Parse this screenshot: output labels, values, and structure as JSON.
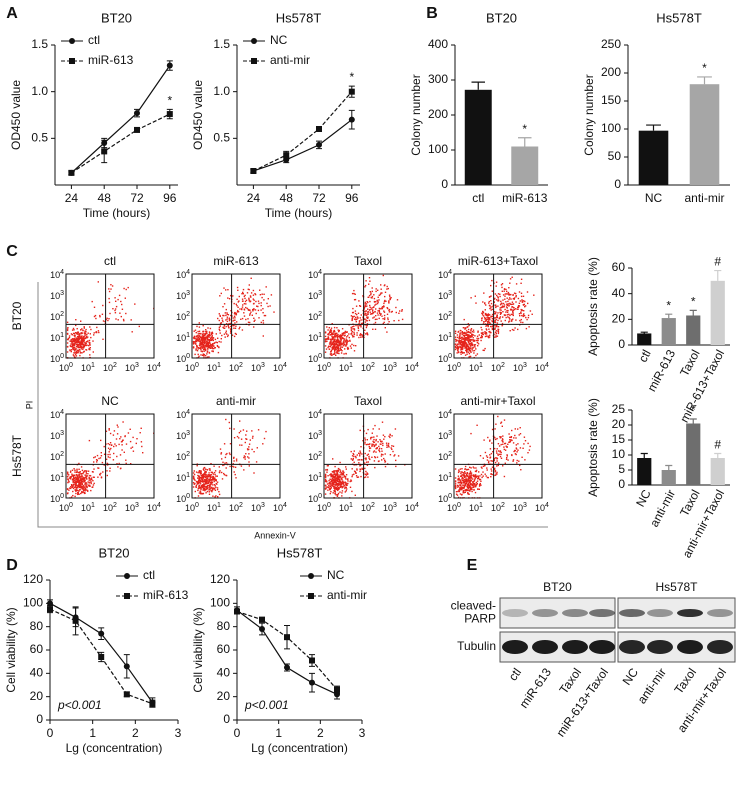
{
  "chart_data": [
    {
      "type": "line",
      "panel": "A",
      "title": "BT20",
      "xlabel": "Time (hours)",
      "ylabel": "OD450 value",
      "x": [
        24,
        48,
        72,
        96
      ],
      "xlim": [
        12,
        102
      ],
      "xticks": [
        24,
        48,
        72,
        96
      ],
      "ylim": [
        0,
        1.5
      ],
      "yticks": [
        0.5,
        {
          "value": 1,
          "label": "1.0"
        },
        1.5
      ],
      "legend": "top-left",
      "series": [
        {
          "name": "ctl",
          "color": "#111111",
          "marker": "circle",
          "line_style": "solid",
          "values": [
            0.13,
            0.45,
            0.77,
            1.28
          ],
          "errors": [
            0.02,
            0.05,
            0.04,
            0.05
          ],
          "annotations": [
            null,
            null,
            null,
            null
          ]
        },
        {
          "name": "miR-613",
          "color": "#111111",
          "marker": "square",
          "line_style": "dashed",
          "values": [
            0.13,
            0.36,
            0.59,
            0.76
          ],
          "errors": [
            0.02,
            0.12,
            0.02,
            0.05
          ],
          "annotations": [
            null,
            null,
            null,
            "*"
          ]
        }
      ]
    },
    {
      "type": "line",
      "title": "Hs578T",
      "xlabel": "Time (hours)",
      "ylabel": "OD450 value",
      "x": [
        24,
        48,
        72,
        96
      ],
      "xlim": [
        12,
        102
      ],
      "xticks": [
        24,
        48,
        72,
        96
      ],
      "ylim": [
        0,
        1.5
      ],
      "yticks": [
        0.5,
        {
          "value": 1,
          "label": "1.0"
        },
        1.5
      ],
      "legend": "top-left",
      "series": [
        {
          "name": "NC",
          "color": "#111111",
          "marker": "circle",
          "line_style": "solid",
          "values": [
            0.15,
            0.27,
            0.43,
            0.7
          ],
          "errors": [
            0.02,
            0.03,
            0.04,
            0.1
          ],
          "annotations": [
            null,
            null,
            null,
            null
          ]
        },
        {
          "name": "anti-mir",
          "color": "#111111",
          "marker": "square",
          "line_style": "dashed",
          "values": [
            0.15,
            0.32,
            0.6,
            1.0
          ],
          "errors": [
            0.02,
            0.04,
            0.02,
            0.06
          ],
          "annotations": [
            null,
            null,
            null,
            "*"
          ]
        }
      ]
    },
    {
      "type": "bar",
      "panel": "B",
      "title": "BT20",
      "ylabel": "Colony number",
      "categories": [
        "ctl",
        "miR-613"
      ],
      "values": [
        272,
        110
      ],
      "errors": [
        22,
        25
      ],
      "colors": [
        "#111111",
        "#a6a6a6"
      ],
      "annotations": [
        null,
        "*"
      ],
      "ylim": [
        0,
        400
      ],
      "yticks": [
        0,
        100,
        200,
        300,
        400
      ]
    },
    {
      "type": "bar",
      "title": "Hs578T",
      "ylabel": "Colony number",
      "categories": [
        "NC",
        "anti-mir"
      ],
      "values": [
        97,
        180
      ],
      "errors": [
        10,
        13
      ],
      "colors": [
        "#111111",
        "#a6a6a6"
      ],
      "annotations": [
        null,
        "*"
      ],
      "ylim": [
        0,
        250
      ],
      "yticks": [
        0,
        50,
        100,
        150,
        200,
        250
      ]
    },
    {
      "type": "bar",
      "ylabel": "Apoptosis rate (%)",
      "categories": [
        "ctl",
        "miR-613",
        "Taxol",
        "miR-613+Taxol"
      ],
      "values": [
        9,
        21,
        23,
        50
      ],
      "errors": [
        1,
        3,
        4,
        8
      ],
      "colors": [
        "#111111",
        "#8c8c8c",
        "#6e6e6e",
        "#cfcfcf"
      ],
      "annotations": [
        null,
        "*",
        "*",
        "#"
      ],
      "ylim": [
        0,
        60
      ],
      "yticks": [
        0,
        20,
        40,
        60
      ]
    },
    {
      "type": "bar",
      "ylabel": "Apoptosis rate (%)",
      "categories": [
        "NC",
        "anti-mir",
        "Taxol",
        "anti-mir+Taxol"
      ],
      "values": [
        9,
        5,
        20.5,
        9
      ],
      "errors": [
        1.5,
        1.5,
        1.5,
        1.5
      ],
      "colors": [
        "#111111",
        "#8c8c8c",
        "#6e6e6e",
        "#cfcfcf"
      ],
      "annotations": [
        null,
        null,
        "*",
        "#"
      ],
      "ylim": [
        0,
        25
      ],
      "yticks": [
        0,
        5,
        10,
        15,
        20,
        25
      ]
    },
    {
      "type": "line",
      "panel": "D",
      "title": "BT20",
      "xlabel": "Lg (concentration)",
      "ylabel": "Cell viability (%)",
      "note": "p<0.001",
      "x": [
        0,
        0.6,
        1.2,
        1.8,
        2.4
      ],
      "xlim": [
        0,
        3
      ],
      "xticks": [
        0,
        1,
        2,
        3
      ],
      "ylim": [
        0,
        120
      ],
      "yticks": [
        0,
        20,
        40,
        60,
        80,
        100,
        120
      ],
      "legend": "top-right",
      "series": [
        {
          "name": "ctl",
          "color": "#111111",
          "marker": "circle",
          "line_style": "solid",
          "values": [
            100,
            88,
            74,
            46,
            15
          ],
          "errors": [
            3,
            8,
            5,
            10,
            4
          ],
          "annotations": [
            null,
            null,
            null,
            null,
            null
          ]
        },
        {
          "name": "miR-613",
          "color": "#111111",
          "marker": "square",
          "line_style": "dashed",
          "values": [
            95,
            85,
            54,
            22,
            14
          ],
          "errors": [
            3,
            12,
            4,
            2,
            3
          ],
          "annotations": [
            null,
            null,
            null,
            null,
            null
          ]
        }
      ]
    },
    {
      "type": "line",
      "title": "Hs578T",
      "xlabel": "Lg (concentration)",
      "ylabel": "Cell viability (%)",
      "note": "p<0.001",
      "x": [
        0,
        0.6,
        1.2,
        1.8,
        2.4
      ],
      "xlim": [
        0,
        3
      ],
      "xticks": [
        0,
        1,
        2,
        3
      ],
      "ylim": [
        0,
        120
      ],
      "yticks": [
        0,
        20,
        40,
        60,
        80,
        100,
        120
      ],
      "legend": "top-right",
      "series": [
        {
          "name": "NC",
          "color": "#111111",
          "marker": "circle",
          "line_style": "solid",
          "values": [
            94,
            78,
            45,
            32,
            22
          ],
          "errors": [
            3,
            5,
            3,
            8,
            4
          ],
          "annotations": [
            null,
            null,
            null,
            null,
            null
          ]
        },
        {
          "name": "anti-mir",
          "color": "#111111",
          "marker": "square",
          "line_style": "dashed",
          "values": [
            93,
            86,
            71,
            51,
            26
          ],
          "errors": [
            2,
            2,
            10,
            5,
            3
          ],
          "annotations": [
            null,
            null,
            null,
            null,
            null
          ]
        }
      ]
    }
  ],
  "flow": {
    "panel": "C",
    "ylabel": "PI",
    "xlabel": "Annexin-V",
    "tick_base": "10",
    "tick_exponents": [
      "0",
      "1",
      "2",
      "3",
      "4"
    ],
    "rows": [
      {
        "label": "BT20",
        "plots": [
          "ctl",
          "miR-613",
          "Taxol",
          "miR-613+Taxol"
        ]
      },
      {
        "label": "Hs578T",
        "plots": [
          "NC",
          "anti-mir",
          "Taxol",
          "anti-mir+Taxol"
        ]
      }
    ]
  },
  "blot": {
    "panel": "E",
    "groups": [
      "BT20",
      "Hs578T"
    ],
    "rows": [
      {
        "label_lines": [
          "cleaved-",
          "PARP"
        ]
      },
      {
        "label_lines": [
          "Tubulin"
        ]
      }
    ],
    "lanes": [
      "ctl",
      "miR-613",
      "Taxol",
      "miR-613+Taxol",
      "NC",
      "anti-mir",
      "Taxol",
      "anti-mir+Taxol"
    ]
  }
}
